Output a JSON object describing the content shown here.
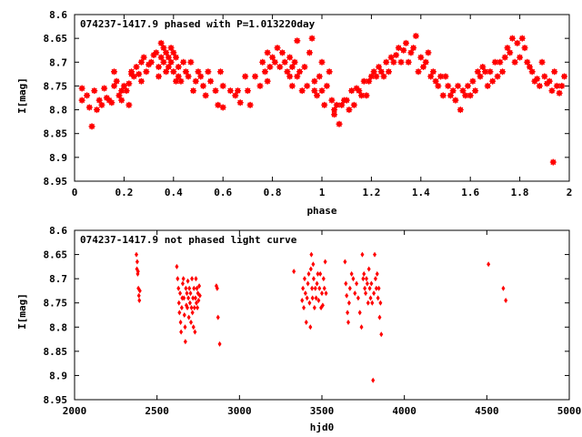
{
  "chart_data": [
    {
      "type": "scatter",
      "title": "074237-1417.9 phased with P=1.013220day",
      "xlabel": "phase",
      "ylabel": "I[mag]",
      "xlim": [
        0,
        2
      ],
      "ylim": [
        8.95,
        8.6
      ],
      "y_inverted": true,
      "grid": false,
      "color": "#ff0000",
      "marker": "star",
      "x_ticks": [
        0,
        0.2,
        0.4,
        0.6,
        0.8,
        1,
        1.2,
        1.4,
        1.6,
        1.8,
        2
      ],
      "x_tick_labels": [
        "0",
        "0.2",
        "0.4",
        "0.6",
        "0.8",
        "1",
        "1.2",
        "1.4",
        "1.6",
        "1.8",
        "2"
      ],
      "y_ticks": [
        8.6,
        8.65,
        8.7,
        8.75,
        8.8,
        8.85,
        8.9,
        8.95
      ],
      "y_tick_labels": [
        "8.6",
        "8.65",
        "8.7",
        "8.75",
        "8.8",
        "8.85",
        "8.9",
        "8.95"
      ],
      "points": [
        [
          0.03,
          8.755
        ],
        [
          0.03,
          8.78
        ],
        [
          0.05,
          8.77
        ],
        [
          0.06,
          8.795
        ],
        [
          0.07,
          8.835
        ],
        [
          0.08,
          8.76
        ],
        [
          0.09,
          8.8
        ],
        [
          0.1,
          8.78
        ],
        [
          0.11,
          8.79
        ],
        [
          0.12,
          8.755
        ],
        [
          0.13,
          8.775
        ],
        [
          0.14,
          8.78
        ],
        [
          0.15,
          8.785
        ],
        [
          0.16,
          8.72
        ],
        [
          0.16,
          8.75
        ],
        [
          0.17,
          8.74
        ],
        [
          0.18,
          8.77
        ],
        [
          0.19,
          8.78
        ],
        [
          0.19,
          8.76
        ],
        [
          0.2,
          8.75
        ],
        [
          0.21,
          8.76
        ],
        [
          0.22,
          8.745
        ],
        [
          0.22,
          8.79
        ],
        [
          0.23,
          8.725
        ],
        [
          0.23,
          8.72
        ],
        [
          0.24,
          8.73
        ],
        [
          0.25,
          8.71
        ],
        [
          0.26,
          8.725
        ],
        [
          0.27,
          8.7
        ],
        [
          0.27,
          8.74
        ],
        [
          0.28,
          8.69
        ],
        [
          0.29,
          8.72
        ],
        [
          0.3,
          8.705
        ],
        [
          0.31,
          8.7
        ],
        [
          0.32,
          8.685
        ],
        [
          0.33,
          8.68
        ],
        [
          0.34,
          8.71
        ],
        [
          0.34,
          8.73
        ],
        [
          0.35,
          8.66
        ],
        [
          0.35,
          8.69
        ],
        [
          0.36,
          8.7
        ],
        [
          0.36,
          8.67
        ],
        [
          0.37,
          8.68
        ],
        [
          0.37,
          8.72
        ],
        [
          0.38,
          8.69
        ],
        [
          0.38,
          8.71
        ],
        [
          0.39,
          8.67
        ],
        [
          0.39,
          8.7
        ],
        [
          0.4,
          8.72
        ],
        [
          0.4,
          8.68
        ],
        [
          0.41,
          8.69
        ],
        [
          0.41,
          8.74
        ],
        [
          0.42,
          8.73
        ],
        [
          0.42,
          8.71
        ],
        [
          0.43,
          8.74
        ],
        [
          0.44,
          8.7
        ],
        [
          0.45,
          8.72
        ],
        [
          0.46,
          8.73
        ],
        [
          0.47,
          8.7
        ],
        [
          0.48,
          8.76
        ],
        [
          0.49,
          8.74
        ],
        [
          0.5,
          8.72
        ],
        [
          0.51,
          8.73
        ],
        [
          0.52,
          8.75
        ],
        [
          0.53,
          8.77
        ],
        [
          0.54,
          8.72
        ],
        [
          0.55,
          8.74
        ],
        [
          0.57,
          8.76
        ],
        [
          0.58,
          8.79
        ],
        [
          0.59,
          8.72
        ],
        [
          0.6,
          8.795
        ],
        [
          0.6,
          8.75
        ],
        [
          0.63,
          8.76
        ],
        [
          0.65,
          8.77
        ],
        [
          0.66,
          8.76
        ],
        [
          0.67,
          8.785
        ],
        [
          0.69,
          8.73
        ],
        [
          0.7,
          8.76
        ],
        [
          0.71,
          8.79
        ],
        [
          0.73,
          8.73
        ],
        [
          0.75,
          8.75
        ],
        [
          0.76,
          8.7
        ],
        [
          0.77,
          8.72
        ],
        [
          0.78,
          8.68
        ],
        [
          0.78,
          8.74
        ],
        [
          0.79,
          8.71
        ],
        [
          0.8,
          8.69
        ],
        [
          0.81,
          8.7
        ],
        [
          0.82,
          8.67
        ],
        [
          0.83,
          8.71
        ],
        [
          0.84,
          8.68
        ],
        [
          0.85,
          8.7
        ],
        [
          0.86,
          8.72
        ],
        [
          0.87,
          8.69
        ],
        [
          0.87,
          8.73
        ],
        [
          0.88,
          8.71
        ],
        [
          0.88,
          8.75
        ],
        [
          0.89,
          8.7
        ],
        [
          0.9,
          8.655
        ],
        [
          0.9,
          8.73
        ],
        [
          0.91,
          8.72
        ],
        [
          0.92,
          8.76
        ],
        [
          0.93,
          8.71
        ],
        [
          0.94,
          8.75
        ],
        [
          0.95,
          8.68
        ],
        [
          0.96,
          8.65
        ],
        [
          0.97,
          8.74
        ],
        [
          0.97,
          8.76
        ],
        [
          0.98,
          8.77
        ],
        [
          0.99,
          8.73
        ],
        [
          1,
          8.7
        ],
        [
          1.0,
          8.76
        ],
        [
          1.01,
          8.79
        ],
        [
          1.02,
          8.75
        ],
        [
          1.03,
          8.72
        ],
        [
          1.04,
          8.78
        ],
        [
          1.05,
          8.8
        ],
        [
          1.05,
          8.81
        ],
        [
          1.06,
          8.79
        ],
        [
          1.07,
          8.83
        ],
        [
          1.08,
          8.79
        ],
        [
          1.09,
          8.78
        ],
        [
          1.1,
          8.78
        ],
        [
          1.11,
          8.8
        ],
        [
          1.12,
          8.76
        ],
        [
          1.13,
          8.79
        ],
        [
          1.14,
          8.755
        ],
        [
          1.15,
          8.76
        ],
        [
          1.16,
          8.77
        ],
        [
          1.17,
          8.74
        ],
        [
          1.18,
          8.77
        ],
        [
          1.19,
          8.74
        ],
        [
          1.2,
          8.73
        ],
        [
          1.21,
          8.72
        ],
        [
          1.22,
          8.73
        ],
        [
          1.23,
          8.71
        ],
        [
          1.24,
          8.72
        ],
        [
          1.25,
          8.73
        ],
        [
          1.26,
          8.7
        ],
        [
          1.27,
          8.72
        ],
        [
          1.28,
          8.69
        ],
        [
          1.29,
          8.7
        ],
        [
          1.3,
          8.685
        ],
        [
          1.31,
          8.67
        ],
        [
          1.32,
          8.7
        ],
        [
          1.33,
          8.675
        ],
        [
          1.34,
          8.66
        ],
        [
          1.35,
          8.7
        ],
        [
          1.36,
          8.68
        ],
        [
          1.37,
          8.67
        ],
        [
          1.38,
          8.645
        ],
        [
          1.39,
          8.72
        ],
        [
          1.4,
          8.69
        ],
        [
          1.41,
          8.71
        ],
        [
          1.42,
          8.7
        ],
        [
          1.43,
          8.68
        ],
        [
          1.44,
          8.73
        ],
        [
          1.45,
          8.72
        ],
        [
          1.46,
          8.74
        ],
        [
          1.47,
          8.75
        ],
        [
          1.48,
          8.73
        ],
        [
          1.49,
          8.77
        ],
        [
          1.5,
          8.73
        ],
        [
          1.51,
          8.75
        ],
        [
          1.52,
          8.77
        ],
        [
          1.53,
          8.76
        ],
        [
          1.54,
          8.78
        ],
        [
          1.55,
          8.75
        ],
        [
          1.56,
          8.8
        ],
        [
          1.57,
          8.76
        ],
        [
          1.58,
          8.77
        ],
        [
          1.59,
          8.75
        ],
        [
          1.6,
          8.77
        ],
        [
          1.61,
          8.74
        ],
        [
          1.62,
          8.76
        ],
        [
          1.63,
          8.72
        ],
        [
          1.64,
          8.73
        ],
        [
          1.65,
          8.71
        ],
        [
          1.66,
          8.72
        ],
        [
          1.67,
          8.75
        ],
        [
          1.68,
          8.72
        ],
        [
          1.69,
          8.74
        ],
        [
          1.7,
          8.7
        ],
        [
          1.71,
          8.73
        ],
        [
          1.72,
          8.7
        ],
        [
          1.73,
          8.72
        ],
        [
          1.74,
          8.69
        ],
        [
          1.75,
          8.67
        ],
        [
          1.76,
          8.68
        ],
        [
          1.77,
          8.65
        ],
        [
          1.78,
          8.7
        ],
        [
          1.79,
          8.66
        ],
        [
          1.8,
          8.69
        ],
        [
          1.81,
          8.65
        ],
        [
          1.82,
          8.67
        ],
        [
          1.83,
          8.7
        ],
        [
          1.84,
          8.71
        ],
        [
          1.85,
          8.72
        ],
        [
          1.86,
          8.74
        ],
        [
          1.87,
          8.735
        ],
        [
          1.88,
          8.75
        ],
        [
          1.89,
          8.7
        ],
        [
          1.9,
          8.73
        ],
        [
          1.91,
          8.745
        ],
        [
          1.92,
          8.74
        ],
        [
          1.93,
          8.76
        ],
        [
          1.935,
          8.91
        ],
        [
          1.94,
          8.72
        ],
        [
          1.95,
          8.75
        ],
        [
          1.96,
          8.765
        ],
        [
          1.97,
          8.75
        ],
        [
          1.98,
          8.73
        ]
      ]
    },
    {
      "type": "scatter",
      "title": "074237-1417.9 not phased light curve",
      "xlabel": "hjd0",
      "ylabel": "I[mag]",
      "xlim": [
        2000,
        5000
      ],
      "ylim": [
        8.95,
        8.6
      ],
      "y_inverted": true,
      "grid": false,
      "color": "#ff0000",
      "marker": "diamond",
      "x_ticks": [
        2000,
        2500,
        3000,
        3500,
        4000,
        4500,
        5000
      ],
      "x_tick_labels": [
        "2000",
        "2500",
        "3000",
        "3500",
        "4000",
        "4500",
        "5000"
      ],
      "y_ticks": [
        8.6,
        8.65,
        8.7,
        8.75,
        8.8,
        8.85,
        8.9,
        8.95
      ],
      "y_tick_labels": [
        "8.6",
        "8.65",
        "8.7",
        "8.75",
        "8.8",
        "8.85",
        "8.9",
        "8.95"
      ],
      "points": [
        [
          2375,
          8.65
        ],
        [
          2378,
          8.68
        ],
        [
          2380,
          8.665
        ],
        [
          2383,
          8.69
        ],
        [
          2385,
          8.685
        ],
        [
          2387,
          8.72
        ],
        [
          2390,
          8.735
        ],
        [
          2393,
          8.745
        ],
        [
          2396,
          8.725
        ],
        [
          2620,
          8.675
        ],
        [
          2625,
          8.7
        ],
        [
          2630,
          8.72
        ],
        [
          2633,
          8.75
        ],
        [
          2636,
          8.77
        ],
        [
          2640,
          8.73
        ],
        [
          2643,
          8.79
        ],
        [
          2646,
          8.81
        ],
        [
          2650,
          8.76
        ],
        [
          2653,
          8.74
        ],
        [
          2656,
          8.71
        ],
        [
          2660,
          8.7
        ],
        [
          2663,
          8.74
        ],
        [
          2666,
          8.775
        ],
        [
          2670,
          8.8
        ],
        [
          2672,
          8.83
        ],
        [
          2675,
          8.72
        ],
        [
          2678,
          8.755
        ],
        [
          2681,
          8.73
        ],
        [
          2684,
          8.76
        ],
        [
          2687,
          8.705
        ],
        [
          2690,
          8.74
        ],
        [
          2693,
          8.78
        ],
        [
          2696,
          8.72
        ],
        [
          2700,
          8.75
        ],
        [
          2703,
          8.73
        ],
        [
          2706,
          8.79
        ],
        [
          2709,
          8.76
        ],
        [
          2712,
          8.7
        ],
        [
          2715,
          8.77
        ],
        [
          2718,
          8.74
        ],
        [
          2721,
          8.8
        ],
        [
          2724,
          8.72
        ],
        [
          2727,
          8.76
        ],
        [
          2730,
          8.81
        ],
        [
          2733,
          8.74
        ],
        [
          2736,
          8.7
        ],
        [
          2739,
          8.75
        ],
        [
          2742,
          8.72
        ],
        [
          2745,
          8.76
        ],
        [
          2748,
          8.73
        ],
        [
          2752,
          8.745
        ],
        [
          2756,
          8.715
        ],
        [
          2760,
          8.735
        ],
        [
          2860,
          8.715
        ],
        [
          2865,
          8.72
        ],
        [
          2870,
          8.78
        ],
        [
          2880,
          8.835
        ],
        [
          3330,
          8.685
        ],
        [
          3380,
          8.745
        ],
        [
          3385,
          8.72
        ],
        [
          3390,
          8.76
        ],
        [
          3395,
          8.7
        ],
        [
          3400,
          8.73
        ],
        [
          3405,
          8.79
        ],
        [
          3410,
          8.74
        ],
        [
          3415,
          8.71
        ],
        [
          3420,
          8.69
        ],
        [
          3425,
          8.75
        ],
        [
          3430,
          8.8
        ],
        [
          3433,
          8.68
        ],
        [
          3436,
          8.65
        ],
        [
          3440,
          8.72
        ],
        [
          3443,
          8.74
        ],
        [
          3447,
          8.67
        ],
        [
          3450,
          8.7
        ],
        [
          3455,
          8.76
        ],
        [
          3460,
          8.72
        ],
        [
          3465,
          8.74
        ],
        [
          3470,
          8.71
        ],
        [
          3475,
          8.69
        ],
        [
          3480,
          8.745
        ],
        [
          3485,
          8.72
        ],
        [
          3490,
          8.69
        ],
        [
          3495,
          8.76
        ],
        [
          3500,
          8.73
        ],
        [
          3505,
          8.755
        ],
        [
          3510,
          8.7
        ],
        [
          3515,
          8.72
        ],
        [
          3520,
          8.665
        ],
        [
          3525,
          8.73
        ],
        [
          3640,
          8.665
        ],
        [
          3645,
          8.71
        ],
        [
          3650,
          8.735
        ],
        [
          3655,
          8.77
        ],
        [
          3660,
          8.79
        ],
        [
          3665,
          8.75
        ],
        [
          3670,
          8.72
        ],
        [
          3680,
          8.69
        ],
        [
          3690,
          8.7
        ],
        [
          3700,
          8.73
        ],
        [
          3710,
          8.71
        ],
        [
          3720,
          8.74
        ],
        [
          3730,
          8.77
        ],
        [
          3740,
          8.8
        ],
        [
          3745,
          8.65
        ],
        [
          3750,
          8.7
        ],
        [
          3755,
          8.69
        ],
        [
          3760,
          8.72
        ],
        [
          3765,
          8.73
        ],
        [
          3770,
          8.7
        ],
        [
          3775,
          8.71
        ],
        [
          3780,
          8.75
        ],
        [
          3785,
          8.68
        ],
        [
          3790,
          8.72
        ],
        [
          3795,
          8.74
        ],
        [
          3800,
          8.71
        ],
        [
          3805,
          8.75
        ],
        [
          3810,
          8.91
        ],
        [
          3815,
          8.73
        ],
        [
          3820,
          8.65
        ],
        [
          3825,
          8.7
        ],
        [
          3830,
          8.72
        ],
        [
          3835,
          8.69
        ],
        [
          3840,
          8.74
        ],
        [
          3845,
          8.72
        ],
        [
          3850,
          8.78
        ],
        [
          3855,
          8.75
        ],
        [
          3860,
          8.815
        ],
        [
          4510,
          8.67
        ],
        [
          4600,
          8.72
        ],
        [
          4615,
          8.745
        ]
      ]
    }
  ]
}
